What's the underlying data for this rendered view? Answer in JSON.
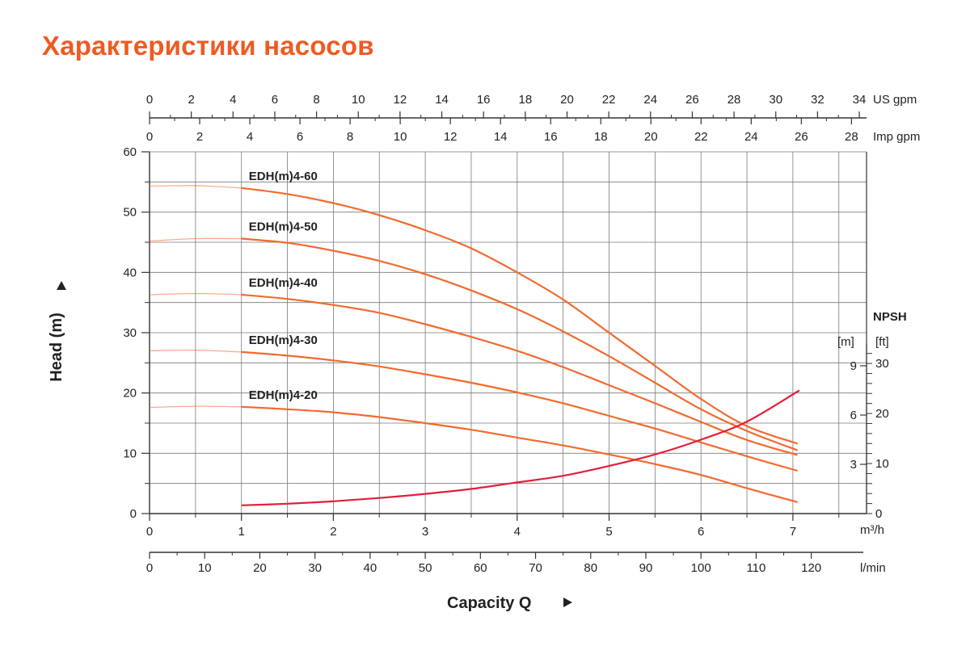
{
  "page": {
    "title": "Характеристики насосов"
  },
  "chart_data": {
    "type": "line",
    "title": "",
    "xlabel": "Capacity Q",
    "ylabel": "Head (m)",
    "x_unit": "m³/h",
    "xlim": [
      0,
      7.8
    ],
    "ylim": [
      0,
      60
    ],
    "grid": true,
    "x_ticks": [
      0,
      1,
      2,
      3,
      4,
      5,
      6,
      7
    ],
    "y_ticks": [
      0,
      10,
      20,
      30,
      40,
      50,
      60
    ],
    "secondary_x_axes": [
      {
        "unit": "US gpm",
        "ticks": [
          0,
          2,
          4,
          6,
          8,
          10,
          12,
          14,
          16,
          18,
          20,
          22,
          24,
          26,
          28,
          30,
          32,
          34
        ]
      },
      {
        "unit": "Imp gpm",
        "ticks": [
          0,
          2,
          4,
          6,
          8,
          10,
          12,
          14,
          16,
          18,
          20,
          22,
          24,
          26,
          28
        ]
      },
      {
        "unit": "l/min",
        "ticks": [
          0,
          10,
          20,
          30,
          40,
          50,
          60,
          70,
          80,
          90,
          100,
          110,
          120
        ]
      }
    ],
    "npsh_axis": {
      "title": "NPSH",
      "m_unit": "[m]",
      "ft_unit": "[ft]",
      "m_ticks": [
        3,
        6,
        9
      ],
      "ft_ticks": [
        0,
        10,
        20,
        30
      ],
      "m_max": 9
    },
    "series": [
      {
        "name": "EDH(m)4-60",
        "x": [
          0,
          0.5,
          1,
          1.5,
          2,
          2.5,
          3,
          3.5,
          4,
          4.5,
          5,
          5.5,
          6,
          6.5,
          7.05
        ],
        "values": [
          54.3,
          54.4,
          54.0,
          53.0,
          51.5,
          49.5,
          47.0,
          44.0,
          40.0,
          35.5,
          30.0,
          24.5,
          19.0,
          14.5,
          11.6
        ]
      },
      {
        "name": "EDH(m)4-50",
        "x": [
          0,
          0.5,
          1,
          1.5,
          2,
          2.5,
          3,
          3.5,
          4,
          4.5,
          5,
          5.5,
          6,
          6.5,
          7.05
        ],
        "values": [
          45.2,
          45.6,
          45.6,
          44.9,
          43.6,
          41.9,
          39.7,
          37.0,
          33.9,
          30.2,
          26.1,
          21.7,
          17.3,
          13.7,
          10.5
        ]
      },
      {
        "name": "EDH(m)4-40",
        "x": [
          0,
          0.5,
          1,
          1.5,
          2,
          2.5,
          3,
          3.5,
          4,
          4.5,
          5,
          5.5,
          6,
          6.5,
          7.05
        ],
        "values": [
          36.3,
          36.5,
          36.3,
          35.6,
          34.6,
          33.3,
          31.4,
          29.3,
          27.0,
          24.3,
          21.3,
          18.3,
          15.2,
          12.2,
          9.7
        ]
      },
      {
        "name": "EDH(m)4-30",
        "x": [
          0,
          0.5,
          1,
          1.5,
          2,
          2.5,
          3,
          3.5,
          4,
          4.5,
          5,
          5.5,
          6,
          6.5,
          7.05
        ],
        "values": [
          27.0,
          27.1,
          26.8,
          26.2,
          25.4,
          24.4,
          23.1,
          21.7,
          20.1,
          18.3,
          16.2,
          14.1,
          11.8,
          9.5,
          7.1
        ]
      },
      {
        "name": "EDH(m)4-20",
        "x": [
          0,
          0.5,
          1,
          1.5,
          2,
          2.5,
          3,
          3.5,
          4,
          4.5,
          5,
          5.5,
          6,
          6.5,
          7.05
        ],
        "values": [
          17.6,
          17.8,
          17.7,
          17.3,
          16.8,
          16.0,
          15.0,
          13.9,
          12.6,
          11.3,
          9.8,
          8.2,
          6.4,
          4.2,
          1.9
        ]
      }
    ],
    "npsh_curve": {
      "x": [
        1,
        1.5,
        2,
        2.5,
        3,
        3.5,
        4,
        4.5,
        5,
        5.5,
        6,
        6.5,
        7.07
      ],
      "values_m": [
        0.5,
        0.6,
        0.75,
        0.95,
        1.2,
        1.5,
        1.9,
        2.3,
        2.9,
        3.6,
        4.5,
        5.6,
        7.5
      ]
    },
    "colors": {
      "head_curve": "#f26a2e",
      "npsh_curve": "#e31e3c",
      "grid": "#7a7a7a",
      "title": "#f05a22"
    }
  }
}
